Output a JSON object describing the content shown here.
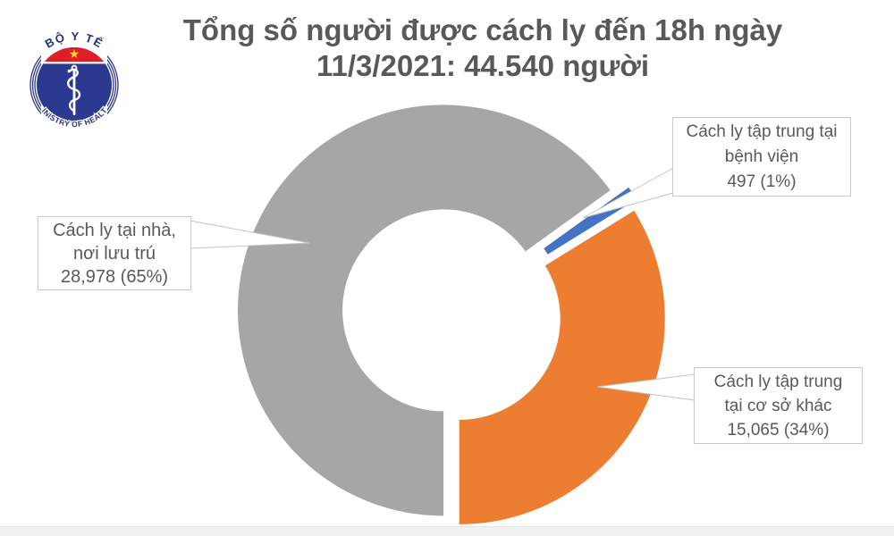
{
  "logo": {
    "top_text": "BỘ Y TẾ",
    "bottom_text": "MINISTRY OF HEALTH"
  },
  "title": {
    "line1": "Tổng số người được cách ly đến 18h ngày",
    "line2": "11/3/2021: 44.540 người"
  },
  "chart_data": {
    "type": "pie",
    "subtype": "donut",
    "title": "Tổng số người được cách ly đến 18h ngày 11/3/2021: 44.540 người",
    "total": 44540,
    "total_display": "44.540 người",
    "start_angle_deg": 180,
    "direction": "clockwise",
    "legend_position": "callouts",
    "slices": [
      {
        "name": "home-residence",
        "label": "Cách ly tại nhà, nơi lưu trú",
        "value": 28978,
        "percent": 65,
        "display": "28,978 (65%)",
        "color": "#A6A6A6"
      },
      {
        "name": "hospital",
        "label": "Cách ly tập trung tại bệnh viện",
        "value": 497,
        "percent": 1,
        "display": "497 (1%)",
        "color": "#4472C4"
      },
      {
        "name": "other-facilities",
        "label": "Cách ly tập trung tại cơ sở khác",
        "value": 15065,
        "percent": 34,
        "display": "15,065 (34%)",
        "color": "#ED7D31"
      }
    ]
  },
  "callouts": [
    {
      "lines": [
        "Cách ly tại nhà,",
        "nơi lưu trú",
        "28,978 (65%)"
      ]
    },
    {
      "lines": [
        "Cách ly tập trung tại",
        "bệnh viện",
        "497 (1%)"
      ]
    },
    {
      "lines": [
        "Cách ly tập trung",
        "tại cơ sở khác",
        "15,065 (34%)"
      ]
    }
  ],
  "colors": {
    "title_text": "#595959",
    "slice_gray": "#A6A6A6",
    "slice_blue": "#4472C4",
    "slice_orange": "#ED7D31",
    "callout_border": "#c9c9c9",
    "logo_navy": "#2b3990",
    "logo_red": "#e01e25",
    "logo_star_yellow": "#ffde17"
  }
}
